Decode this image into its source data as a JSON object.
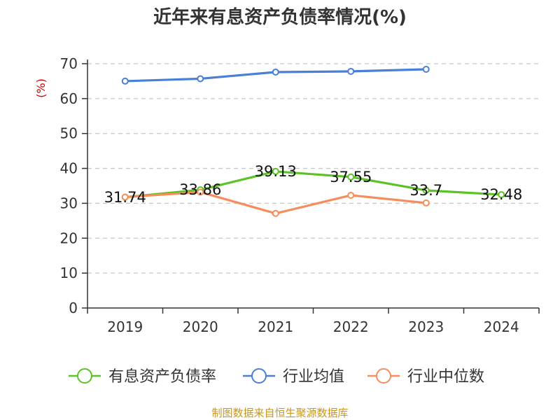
{
  "chart_data": {
    "type": "line",
    "title": "近年来有息资产负债率情况(%)",
    "ylabel": "(%)",
    "xlabel": "",
    "categories": [
      "2019",
      "2020",
      "2021",
      "2022",
      "2023",
      "2024"
    ],
    "ylim": [
      0,
      70
    ],
    "yticks": [
      0,
      10,
      20,
      30,
      40,
      50,
      60,
      70
    ],
    "grid": true,
    "legend_position": "bottom",
    "series": [
      {
        "name": "有息资产负债率",
        "color": "#5cc225",
        "values": [
          31.74,
          33.86,
          39.13,
          37.55,
          33.7,
          32.48
        ],
        "labels": [
          "31.74",
          "33.86",
          "39.13",
          "37.55",
          "33.7",
          "32.48"
        ],
        "show_labels": true
      },
      {
        "name": "行业均值",
        "color": "#4a7fd8",
        "values": [
          65.0,
          65.7,
          67.6,
          67.8,
          68.4,
          null
        ],
        "show_labels": false
      },
      {
        "name": "行业中位数",
        "color": "#f58e5c",
        "values": [
          31.8,
          33.2,
          27.1,
          32.3,
          30.1,
          null
        ],
        "show_labels": false
      }
    ]
  },
  "source": {
    "text": "制图数据来自恒生聚源数据库",
    "color": "#c8961e"
  },
  "colors": {
    "ylabel": "#cc0000",
    "axis": "#333333",
    "grid": "#c8c8c8"
  }
}
